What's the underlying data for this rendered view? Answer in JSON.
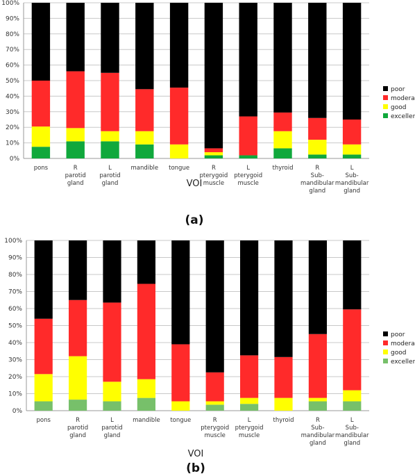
{
  "figure": {
    "panel_labels": [
      "(a)",
      "(b)"
    ]
  },
  "chart_data": [
    {
      "type": "bar",
      "stacked": true,
      "xlabel": "VOI",
      "ylim": [
        0,
        100
      ],
      "yticks": [
        "0%",
        "10%",
        "20%",
        "30%",
        "40%",
        "50%",
        "60%",
        "70%",
        "80%",
        "90%",
        "100%"
      ],
      "categories": [
        [
          "pons"
        ],
        [
          "R",
          "parotid",
          "gland"
        ],
        [
          "L",
          "parotid",
          "gland"
        ],
        [
          "mandible"
        ],
        [
          "tongue"
        ],
        [
          "R",
          "pterygoid",
          "muscle"
        ],
        [
          "L",
          "pterygoid",
          "muscle"
        ],
        [
          "thyroid"
        ],
        [
          "R",
          "Sub-",
          "mandibular",
          "gland"
        ],
        [
          "L",
          "Sub-",
          "mandibular",
          "gland"
        ]
      ],
      "series": [
        {
          "name": "excellent",
          "color": "#10a83c",
          "values": [
            7.5,
            11,
            11,
            9,
            0,
            2,
            2,
            6.5,
            2.5,
            2.5
          ]
        },
        {
          "name": "good",
          "color": "#ffff00",
          "values": [
            13,
            8.5,
            6.5,
            8.5,
            9,
            2,
            0,
            11,
            9.5,
            6.5
          ]
        },
        {
          "name": "moderate",
          "color": "#ff2a2a",
          "values": [
            29.5,
            36.5,
            37.5,
            27,
            36.5,
            2.5,
            25,
            12,
            14,
            16
          ]
        },
        {
          "name": "poor",
          "color": "#000000",
          "values": [
            50,
            44,
            45,
            55.5,
            54.5,
            93.5,
            73,
            70.5,
            74,
            75
          ]
        }
      ],
      "legend": "right",
      "grid": true
    },
    {
      "type": "bar",
      "stacked": true,
      "xlabel": "VOI",
      "ylim": [
        0,
        100
      ],
      "yticks": [
        "0%",
        "10%",
        "20%",
        "30%",
        "40%",
        "50%",
        "60%",
        "70%",
        "80%",
        "90%",
        "100%"
      ],
      "categories": [
        [
          "pons"
        ],
        [
          "R",
          "parotid",
          "gland"
        ],
        [
          "L",
          "parotid",
          "gland"
        ],
        [
          "mandible"
        ],
        [
          "tongue"
        ],
        [
          "R",
          "pterygoid",
          "muscle"
        ],
        [
          "L",
          "pterygoid",
          "muscle"
        ],
        [
          "thyroid"
        ],
        [
          "R",
          "Sub-",
          "mandibular",
          "gland"
        ],
        [
          "L",
          "Sub-",
          "mandibular",
          "gland"
        ]
      ],
      "series": [
        {
          "name": "excellent",
          "color": "#77c06a",
          "values": [
            5.5,
            6.5,
            5.5,
            7.5,
            0,
            3.5,
            4,
            0,
            5.5,
            5.5
          ]
        },
        {
          "name": "good",
          "color": "#ffff00",
          "values": [
            16,
            25.5,
            11.5,
            11,
            5.5,
            2,
            3.5,
            7.5,
            2,
            6.5
          ]
        },
        {
          "name": "moderate",
          "color": "#ff2a2a",
          "values": [
            32.5,
            33,
            46.5,
            56,
            33.5,
            17,
            25,
            24,
            37.5,
            47.5
          ]
        },
        {
          "name": "poor",
          "color": "#000000",
          "values": [
            46,
            35,
            36.5,
            25.5,
            61,
            77.5,
            67.5,
            68.5,
            55,
            40.5
          ]
        }
      ],
      "legend": "right",
      "grid": true
    }
  ]
}
